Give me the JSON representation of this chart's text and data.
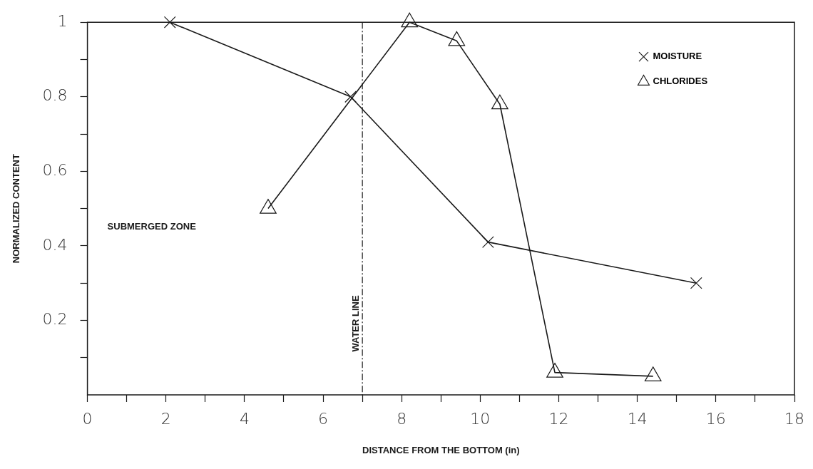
{
  "chart_data": {
    "type": "line",
    "xlabel": "DISTANCE FROM THE BOTTOM (in)",
    "ylabel": "NORMALIZED CONTENT",
    "xlim": [
      0,
      18
    ],
    "xticks": [
      0,
      {
        "value": 1,
        "label": null
      },
      2,
      {
        "value": 3,
        "label": null
      },
      4,
      {
        "value": 5,
        "label": null
      },
      6,
      {
        "value": 7,
        "label": null
      },
      8,
      {
        "value": 9,
        "label": null
      },
      10,
      {
        "value": 11,
        "label": null
      },
      12,
      {
        "value": 13,
        "label": null
      },
      14,
      {
        "value": 15,
        "label": null
      },
      16,
      {
        "value": 17,
        "label": null
      },
      18
    ],
    "ylim": [
      0,
      1
    ],
    "yticks": [
      {
        "value": 0.1,
        "label": null
      },
      0.2,
      {
        "value": 0.3,
        "label": null
      },
      0.4,
      {
        "value": 0.5,
        "label": null
      },
      0.6,
      {
        "value": 0.7,
        "label": null
      },
      0.8,
      {
        "value": 0.9,
        "label": null
      },
      1
    ],
    "series": [
      {
        "name": "MOISTURE",
        "color": "#1a1a1a",
        "marker": "cross",
        "x": [
          2.1,
          6.7,
          10.2,
          15.5
        ],
        "values": [
          1.0,
          0.8,
          0.41,
          0.3
        ]
      },
      {
        "name": "CHLORIDES",
        "color": "#1a1a1a",
        "marker": "triangle",
        "x": [
          4.6,
          8.2,
          9.4,
          10.5,
          11.9,
          14.4
        ],
        "values": [
          0.5,
          1.0,
          0.95,
          0.78,
          0.06,
          0.05
        ]
      }
    ],
    "ref_lines": [
      {
        "axis": "x",
        "value": 7,
        "label": "WATER LINE",
        "color": "#1a1a1a",
        "line_style": "dashdot"
      }
    ],
    "annotations": [
      "SUBMERGED ZONE"
    ],
    "legend": "top right",
    "grid": false
  }
}
